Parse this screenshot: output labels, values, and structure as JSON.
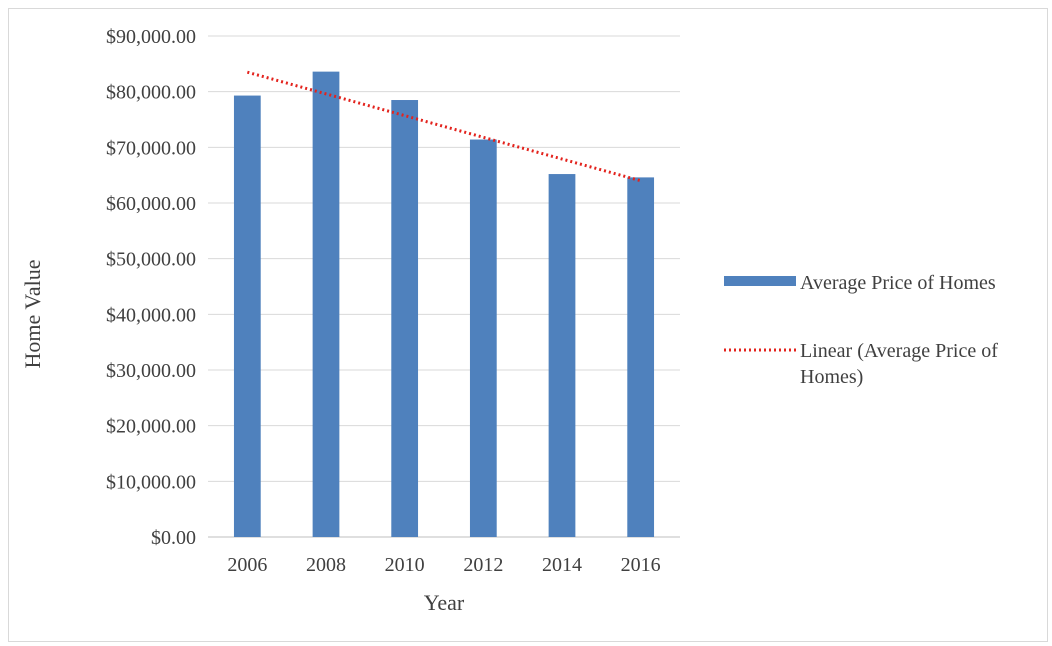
{
  "chart_data": {
    "type": "bar",
    "categories": [
      "2006",
      "2008",
      "2010",
      "2012",
      "2014",
      "2016"
    ],
    "series": [
      {
        "name": "Average Price of Homes",
        "values": [
          79300,
          83600,
          78500,
          71400,
          65200,
          64600
        ],
        "color": "#4f81bd"
      }
    ],
    "trendline": {
      "name": "Linear (Average Price of Homes)",
      "legend_lines": [
        "Linear (Average Price of",
        "Homes)"
      ],
      "type": "linear",
      "color": "#e3231d",
      "start_value": 83500,
      "end_value": 64000
    },
    "xlabel": "Year",
    "ylabel": "Home Value",
    "ylim": [
      0,
      90000
    ],
    "yticks": [
      0,
      10000,
      20000,
      30000,
      40000,
      50000,
      60000,
      70000,
      80000,
      90000
    ],
    "ytick_labels": [
      "$0.00",
      "$10,000.00",
      "$20,000.00",
      "$30,000.00",
      "$40,000.00",
      "$50,000.00",
      "$60,000.00",
      "$70,000.00",
      "$80,000.00",
      "$90,000.00"
    ],
    "grid": true,
    "legend_position": "right"
  }
}
